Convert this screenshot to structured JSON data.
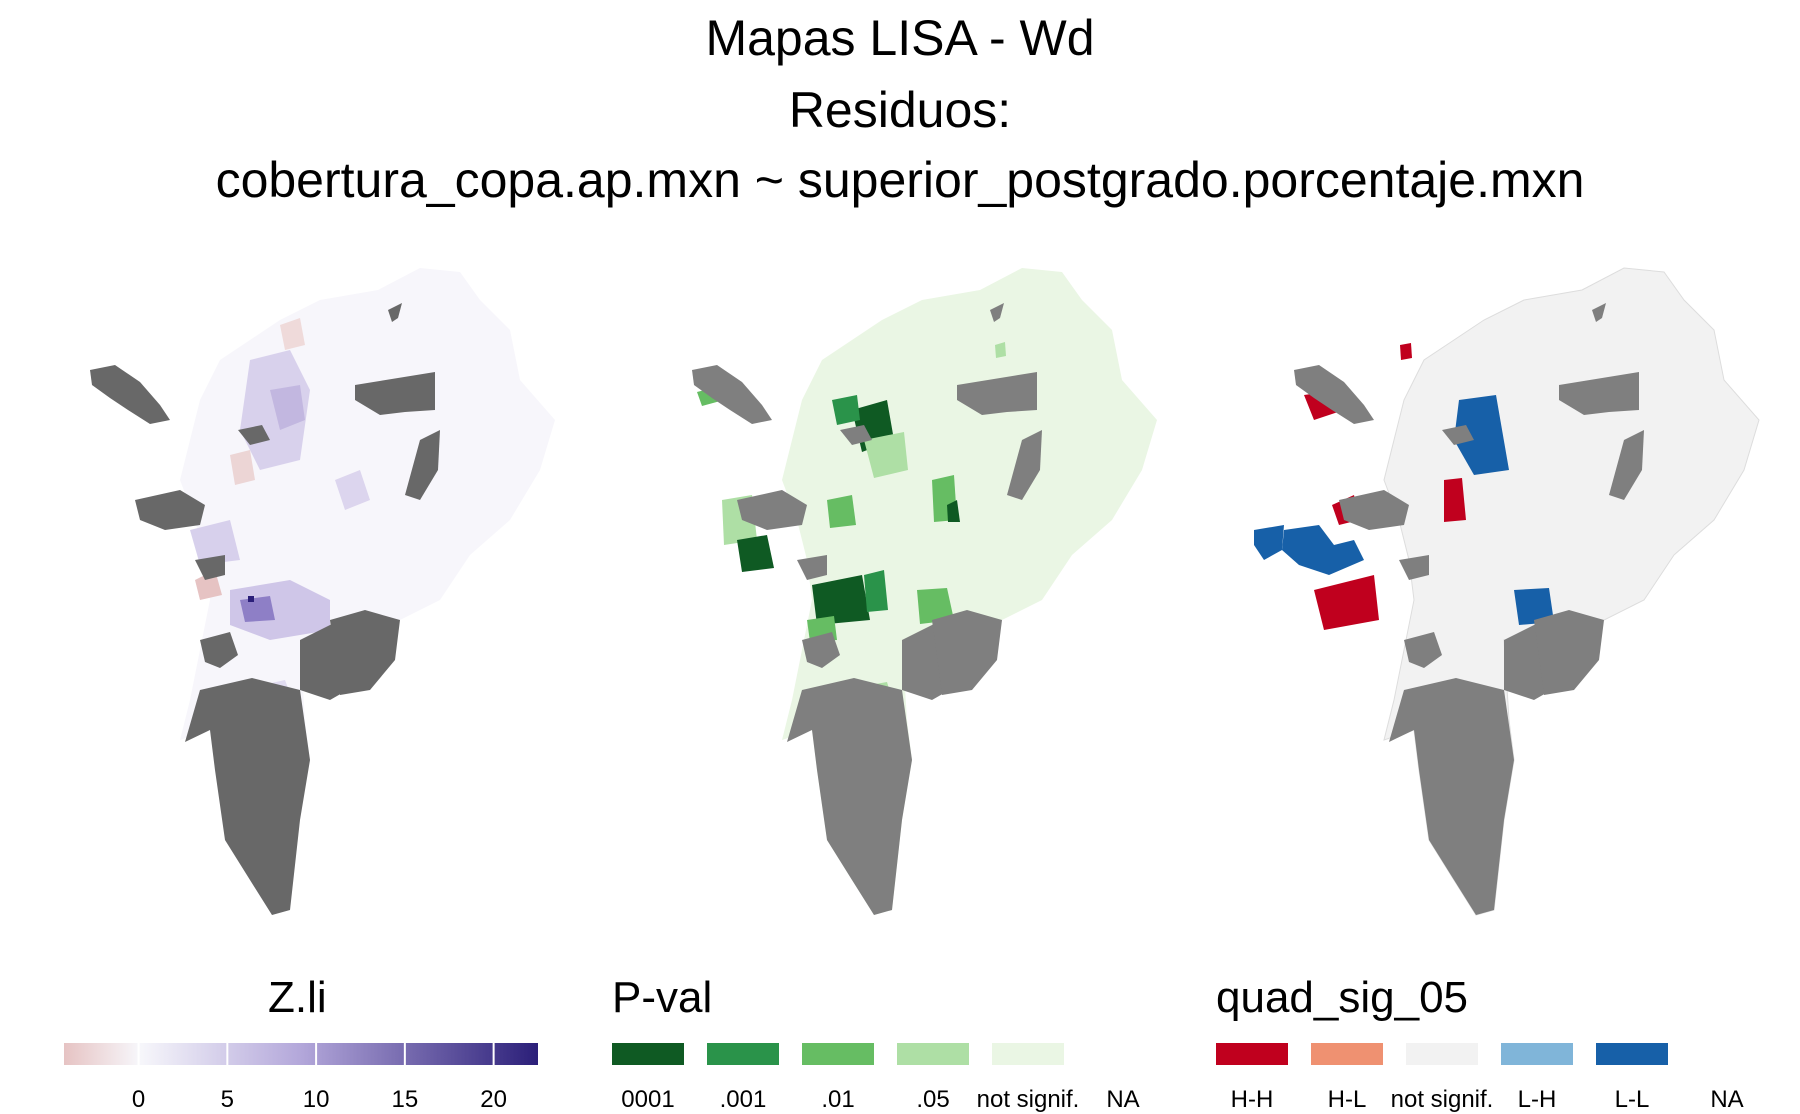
{
  "title": {
    "line1": "Mapas LISA - Wd",
    "line2": "Residuos:",
    "line3": "cobertura_copa.ap.mxn ~ superior_postgrado.porcentaje.mxn"
  },
  "colors": {
    "na_fill": "#7f7f7f",
    "gradient_low": "#e6c3c3",
    "gradient_mid": "#f7f7fb",
    "gradient_high": "#2b1f79",
    "hh": "#c0001e",
    "hl": "#ef9171",
    "not_signif_quad": "#f2f2f2",
    "lh": "#80b5d9",
    "ll": "#1760a8",
    "na_quad": "#ffffff",
    "p0001": "#0f5a23",
    "p001": "#2a934a",
    "p01": "#66bd63",
    "p05": "#aedfa5",
    "pnot": "#eaf6e4"
  },
  "legends": {
    "zli": {
      "title": "Z.li",
      "ticks": [
        "0",
        "5",
        "10",
        "15",
        "20"
      ],
      "tick_values": [
        0,
        5,
        10,
        15,
        20
      ],
      "range": [
        -4.2,
        22.5
      ]
    },
    "pval": {
      "title": "P-val",
      "items": [
        {
          "label": "0001",
          "color": "#0f5a23"
        },
        {
          "label": ".001",
          "color": "#2a934a"
        },
        {
          "label": ".01",
          "color": "#66bd63"
        },
        {
          "label": ".05",
          "color": "#aedfa5"
        },
        {
          "label": "not signif.",
          "color": "#eaf6e4"
        },
        {
          "label": "NA",
          "color": "#ffffff"
        }
      ]
    },
    "quad": {
      "title": "quad_sig_05",
      "items": [
        {
          "label": "H-H",
          "color": "#c0001e"
        },
        {
          "label": "H-L",
          "color": "#ef9171"
        },
        {
          "label": "not signif.",
          "color": "#f2f2f2"
        },
        {
          "label": "L-H",
          "color": "#80b5d9"
        },
        {
          "label": "L-L",
          "color": "#1760a8"
        },
        {
          "label": "NA",
          "color": "#ffffff"
        }
      ]
    }
  }
}
